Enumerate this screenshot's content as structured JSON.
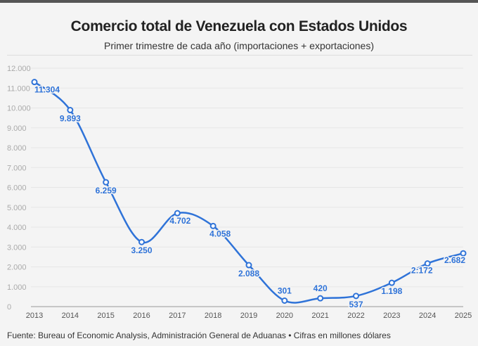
{
  "title": "Comercio total de Venezuela con Estados Unidos",
  "subtitle": "Primer trimestre de cada año (importaciones + exportaciones)",
  "source": "Fuente: Bureau of Economic Analysis, Administración General de Aduanas • Cifras en millones dólares",
  "colors": {
    "line": "#2f73d8",
    "background": "#f4f4f4",
    "grid": "#e6e6e6"
  },
  "chart_data": {
    "type": "line",
    "title": "Comercio total de Venezuela con Estados Unidos",
    "x": [
      "2013",
      "2014",
      "2015",
      "2016",
      "2017",
      "2018",
      "2019",
      "2020",
      "2021",
      "2022",
      "2023",
      "2024",
      "2025"
    ],
    "values": [
      11304,
      9893,
      6259,
      3250,
      4702,
      4058,
      2088,
      301,
      420,
      537,
      1198,
      2172,
      2682
    ],
    "data_labels": [
      "11.304",
      "9.893",
      "6.259",
      "3.250",
      "4.702",
      "4.058",
      "2.088",
      "301",
      "420",
      "537",
      "1.198",
      "2:172",
      "2.682"
    ],
    "yticks": [
      "0",
      "1.000",
      "2.000",
      "3.000",
      "4.000",
      "5.000",
      "6.000",
      "7.000",
      "8.000",
      "9.000",
      "10.000",
      "11.000",
      "12.000"
    ],
    "ylim": [
      0,
      12000
    ],
    "grid": true,
    "smooth": true
  }
}
